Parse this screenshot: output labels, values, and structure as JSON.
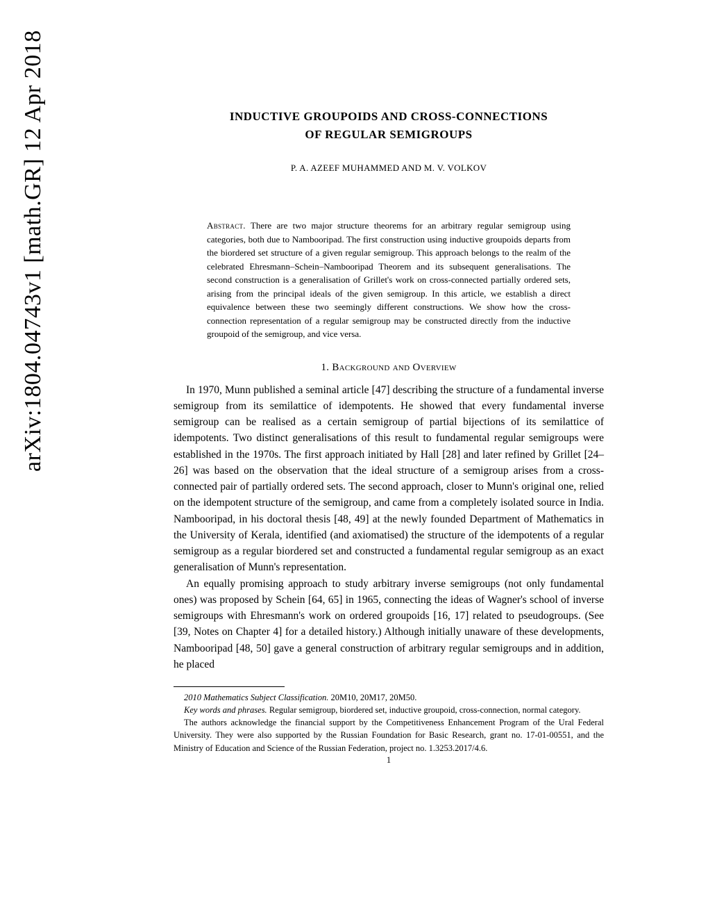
{
  "arxiv_id": "arXiv:1804.04743v1  [math.GR]  12 Apr 2018",
  "title_line1": "INDUCTIVE GROUPOIDS AND CROSS-CONNECTIONS",
  "title_line2": "OF REGULAR SEMIGROUPS",
  "authors": "P. A. AZEEF MUHAMMED AND M. V. VOLKOV",
  "abstract_label": "Abstract.",
  "abstract_text": "There are two major structure theorems for an arbitrary regular semigroup using categories, both due to Nambooripad. The first construction using inductive groupoids departs from the biordered set structure of a given regular semigroup. This approach belongs to the realm of the celebrated Ehresmann–Schein–Nambooripad Theorem and its subsequent generalisations. The second construction is a generalisation of Grillet's work on cross-connected partially ordered sets, arising from the principal ideals of the given semigroup. In this article, we establish a direct equivalence between these two seemingly different constructions. We show how the cross-connection representation of a regular semigroup may be constructed directly from the inductive groupoid of the semigroup, and vice versa.",
  "section_heading": "1. Background and Overview",
  "paragraph1": "In 1970, Munn published a seminal article [47] describing the structure of a fundamental inverse semigroup from its semilattice of idempotents. He showed that every fundamental inverse semigroup can be realised as a certain semigroup of partial bijections of its semilattice of idempotents. Two distinct generalisations of this result to fundamental regular semigroups were established in the 1970s. The first approach initiated by Hall [28] and later refined by Grillet [24–26] was based on the observation that the ideal structure of a semigroup arises from a cross-connected pair of partially ordered sets. The second approach, closer to Munn's original one, relied on the idempotent structure of the semigroup, and came from a completely isolated source in India. Nambooripad, in his doctoral thesis [48, 49] at the newly founded Department of Mathematics in the University of Kerala, identified (and axiomatised) the structure of the idempotents of a regular semigroup as a regular biordered set and constructed a fundamental regular semigroup as an exact generalisation of Munn's representation.",
  "paragraph2": "An equally promising approach to study arbitrary inverse semigroups (not only fundamental ones) was proposed by Schein [64, 65] in 1965, connecting the ideas of Wagner's school of inverse semigroups with Ehresmann's work on ordered groupoids [16, 17] related to pseudogroups. (See [39, Notes on Chapter 4] for a detailed history.) Although initially unaware of these developments, Nambooripad [48, 50] gave a general construction of arbitrary regular semigroups and in addition, he placed",
  "footnote_msc_label": "2010 Mathematics Subject Classification.",
  "footnote_msc": "20M10, 20M17, 20M50.",
  "footnote_keywords_label": "Key words and phrases.",
  "footnote_keywords": "Regular semigroup, biordered set, inductive groupoid, cross-connection, normal category.",
  "footnote_ack": "The authors acknowledge the financial support by the Competitiveness Enhancement Program of the Ural Federal University. They were also supported by the Russian Foundation for Basic Research, grant no. 17-01-00551, and the Ministry of Education and Science of the Russian Federation, project no. 1.3253.2017/4.6.",
  "page_number": "1"
}
